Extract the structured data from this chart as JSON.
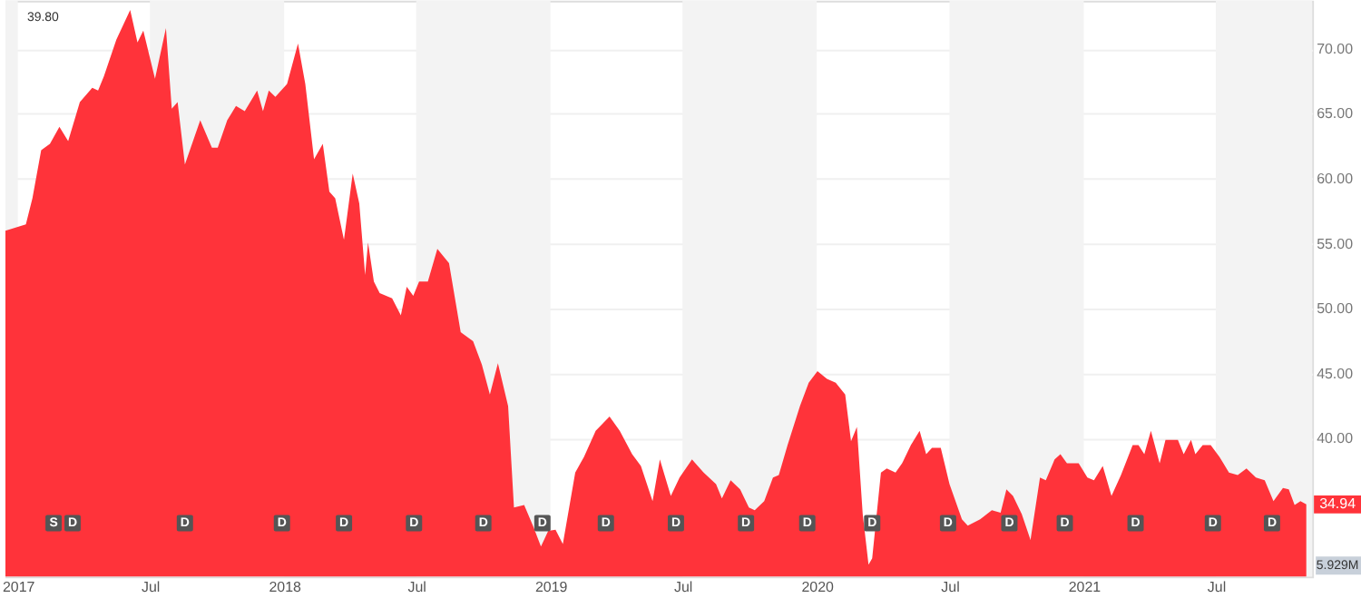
{
  "chart_data": {
    "type": "area",
    "x": [
      "2016-12-15",
      "2017-01-12",
      "2017-01-21",
      "2017-02-02",
      "2017-02-14",
      "2017-02-27",
      "2017-03-11",
      "2017-03-27",
      "2017-04-13",
      "2017-04-21",
      "2017-04-29",
      "2017-05-16",
      "2017-06-04",
      "2017-06-14",
      "2017-06-22",
      "2017-07-08",
      "2017-07-23",
      "2017-07-31",
      "2017-08-08",
      "2017-08-18",
      "2017-09-08",
      "2017-09-24",
      "2017-10-02",
      "2017-10-15",
      "2017-10-27",
      "2017-11-08",
      "2017-11-25",
      "2017-12-03",
      "2017-12-11",
      "2017-12-20",
      "2018-01-05",
      "2018-01-20",
      "2018-01-30",
      "2018-02-11",
      "2018-02-23",
      "2018-03-04",
      "2018-03-12",
      "2018-03-24",
      "2018-04-05",
      "2018-04-14",
      "2018-04-22",
      "2018-04-26",
      "2018-05-04",
      "2018-05-12",
      "2018-05-29",
      "2018-06-10",
      "2018-06-18",
      "2018-06-27",
      "2018-07-05",
      "2018-07-17",
      "2018-07-30",
      "2018-08-15",
      "2018-08-31",
      "2018-09-17",
      "2018-09-29",
      "2018-10-10",
      "2018-10-21",
      "2018-11-04",
      "2018-11-12",
      "2018-11-26",
      "2018-12-08",
      "2018-12-19",
      "2018-12-29",
      "2019-01-08",
      "2019-01-18",
      "2019-02-04",
      "2019-02-16",
      "2019-03-04",
      "2019-03-23",
      "2019-04-06",
      "2019-04-23",
      "2019-05-05",
      "2019-05-21",
      "2019-05-31",
      "2019-06-15",
      "2019-06-27",
      "2019-07-14",
      "2019-07-30",
      "2019-08-16",
      "2019-08-24",
      "2019-09-05",
      "2019-09-18",
      "2019-09-30",
      "2019-10-08",
      "2019-10-21",
      "2019-11-02",
      "2019-11-10",
      "2019-11-22",
      "2019-12-09",
      "2019-12-21",
      "2020-01-02",
      "2020-01-15",
      "2020-01-27",
      "2020-02-09",
      "2020-02-17",
      "2020-02-25",
      "2020-03-04",
      "2020-03-12",
      "2020-03-17",
      "2020-03-29",
      "2020-04-06",
      "2020-04-18",
      "2020-04-27",
      "2020-05-09",
      "2020-05-21",
      "2020-05-30",
      "2020-06-07",
      "2020-06-19",
      "2020-07-01",
      "2020-07-18",
      "2020-07-26",
      "2020-08-12",
      "2020-08-28",
      "2020-09-09",
      "2020-09-17",
      "2020-09-26",
      "2020-10-08",
      "2020-10-20",
      "2020-11-02",
      "2020-11-10",
      "2020-11-22",
      "2020-11-30",
      "2020-12-09",
      "2020-12-25",
      "2021-01-06",
      "2021-01-15",
      "2021-01-27",
      "2021-02-08",
      "2021-02-21",
      "2021-03-09",
      "2021-03-17",
      "2021-03-25",
      "2021-04-03",
      "2021-04-15",
      "2021-04-23",
      "2021-05-10",
      "2021-05-18",
      "2021-05-28",
      "2021-06-03",
      "2021-06-13",
      "2021-06-24",
      "2021-07-06",
      "2021-07-19",
      "2021-07-31",
      "2021-08-12",
      "2021-08-25",
      "2021-09-06",
      "2021-09-18",
      "2021-10-01",
      "2021-10-09",
      "2021-10-17",
      "2021-10-25",
      "2021-11-02"
    ],
    "series": [
      {
        "color": "#ff333a",
        "values": [
          56.0,
          56.5,
          58.5,
          62.2,
          62.7,
          64.0,
          62.9,
          65.9,
          67.0,
          66.8,
          67.9,
          70.7,
          73.0,
          70.5,
          71.4,
          67.7,
          71.6,
          65.4,
          65.9,
          61.1,
          64.5,
          62.4,
          62.4,
          64.5,
          65.6,
          65.2,
          66.8,
          65.2,
          66.8,
          66.3,
          67.3,
          70.4,
          67.3,
          61.5,
          62.7,
          59.0,
          58.5,
          55.3,
          60.4,
          58.1,
          52.6,
          55.1,
          52.1,
          51.2,
          50.8,
          49.5,
          51.7,
          51.0,
          52.1,
          52.1,
          54.6,
          53.5,
          48.2,
          47.5,
          45.7,
          43.4,
          45.8,
          42.5,
          34.7,
          34.9,
          33.3,
          31.7,
          32.9,
          33.0,
          31.9,
          37.4,
          38.6,
          40.6,
          41.7,
          40.6,
          38.8,
          37.9,
          35.2,
          38.4,
          35.6,
          37.0,
          38.4,
          37.4,
          36.5,
          35.4,
          36.8,
          36.1,
          34.7,
          34.5,
          35.2,
          37.0,
          37.2,
          39.5,
          42.5,
          44.3,
          45.2,
          44.6,
          44.3,
          43.4,
          39.8,
          40.9,
          34.2,
          30.3,
          30.8,
          37.4,
          37.7,
          37.4,
          38.1,
          39.5,
          40.6,
          38.8,
          39.3,
          39.3,
          36.5,
          33.8,
          33.3,
          33.8,
          34.5,
          34.3,
          36.1,
          35.6,
          34.2,
          32.2,
          37.0,
          36.8,
          38.4,
          38.8,
          38.1,
          38.1,
          37.0,
          36.8,
          37.9,
          35.6,
          37.2,
          39.5,
          39.5,
          38.8,
          40.6,
          38.1,
          39.9,
          39.9,
          38.8,
          39.9,
          38.8,
          39.5,
          39.5,
          38.6,
          37.4,
          37.2,
          37.7,
          37.0,
          36.8,
          35.2,
          36.2,
          36.1,
          34.9,
          35.2,
          34.94
        ]
      }
    ],
    "xlim": [
      "2016-12-15",
      "2021-11-10"
    ],
    "xticks": [
      {
        "value": "2017-01-01",
        "label": "2017"
      },
      {
        "value": "2017-07-01",
        "label": "Jul"
      },
      {
        "value": "2018-01-01",
        "label": "2018"
      },
      {
        "value": "2018-07-01",
        "label": "Jul"
      },
      {
        "value": "2019-01-01",
        "label": "2019"
      },
      {
        "value": "2019-07-01",
        "label": "Jul"
      },
      {
        "value": "2020-01-01",
        "label": "2020"
      },
      {
        "value": "2020-07-01",
        "label": "Jul"
      },
      {
        "value": "2021-01-01",
        "label": "2021"
      },
      {
        "value": "2021-07-01",
        "label": "Jul"
      }
    ],
    "ylim": [
      29.4,
      73.7
    ],
    "yticks": [
      {
        "value": 40,
        "label": "40.00"
      },
      {
        "value": 45,
        "label": "45.00"
      },
      {
        "value": 50,
        "label": "50.00"
      },
      {
        "value": 55,
        "label": "55.00"
      },
      {
        "value": 60,
        "label": "60.00"
      },
      {
        "value": 65,
        "label": "65.00"
      },
      {
        "value": 70,
        "label": "70.00"
      }
    ],
    "grid": "y",
    "bands": [
      {
        "axis": "x",
        "from": "2016-12-15",
        "to": "2017-01-01",
        "color": "#f3f3f3"
      },
      {
        "axis": "x",
        "from": "2017-07-01",
        "to": "2018-01-01",
        "color": "#f3f3f3"
      },
      {
        "axis": "x",
        "from": "2018-07-01",
        "to": "2019-01-01",
        "color": "#f3f3f3"
      },
      {
        "axis": "x",
        "from": "2019-07-01",
        "to": "2020-01-01",
        "color": "#f3f3f3"
      },
      {
        "axis": "x",
        "from": "2020-07-01",
        "to": "2021-01-01",
        "color": "#f3f3f3"
      },
      {
        "axis": "x",
        "from": "2021-07-01",
        "to": "2021-11-10",
        "color": "#f3f3f3"
      }
    ],
    "annotations": [
      "39.80",
      "5.929M",
      {
        "text": "34.94",
        "x": "2021-11-02",
        "y": 34.94
      },
      {
        "text": "S",
        "x": "2017-02-19",
        "y": 33.5
      },
      {
        "text": "D",
        "x": "2017-03-17",
        "y": 33.5
      },
      {
        "text": "D",
        "x": "2017-08-18",
        "y": 33.5
      },
      {
        "text": "D",
        "x": "2017-12-29",
        "y": 33.5
      },
      {
        "text": "D",
        "x": "2018-03-24",
        "y": 33.5
      },
      {
        "text": "D",
        "x": "2018-06-28",
        "y": 33.5
      },
      {
        "text": "D",
        "x": "2018-10-01",
        "y": 33.5
      },
      {
        "text": "D",
        "x": "2018-12-21",
        "y": 33.5
      },
      {
        "text": "D",
        "x": "2019-03-18",
        "y": 33.5
      },
      {
        "text": "D",
        "x": "2019-06-22",
        "y": 33.5
      },
      {
        "text": "D",
        "x": "2019-09-26",
        "y": 33.5
      },
      {
        "text": "D",
        "x": "2019-12-19",
        "y": 33.5
      },
      {
        "text": "D",
        "x": "2020-03-17",
        "y": 33.5
      },
      {
        "text": "D",
        "x": "2020-06-29",
        "y": 33.5
      },
      {
        "text": "D",
        "x": "2020-09-21",
        "y": 33.5
      },
      {
        "text": "D",
        "x": "2020-12-06",
        "y": 33.5
      },
      {
        "text": "D",
        "x": "2021-03-13",
        "y": 33.5
      },
      {
        "text": "D",
        "x": "2021-06-27",
        "y": 33.5
      },
      {
        "text": "D",
        "x": "2021-09-16",
        "y": 33.5
      }
    ]
  }
}
